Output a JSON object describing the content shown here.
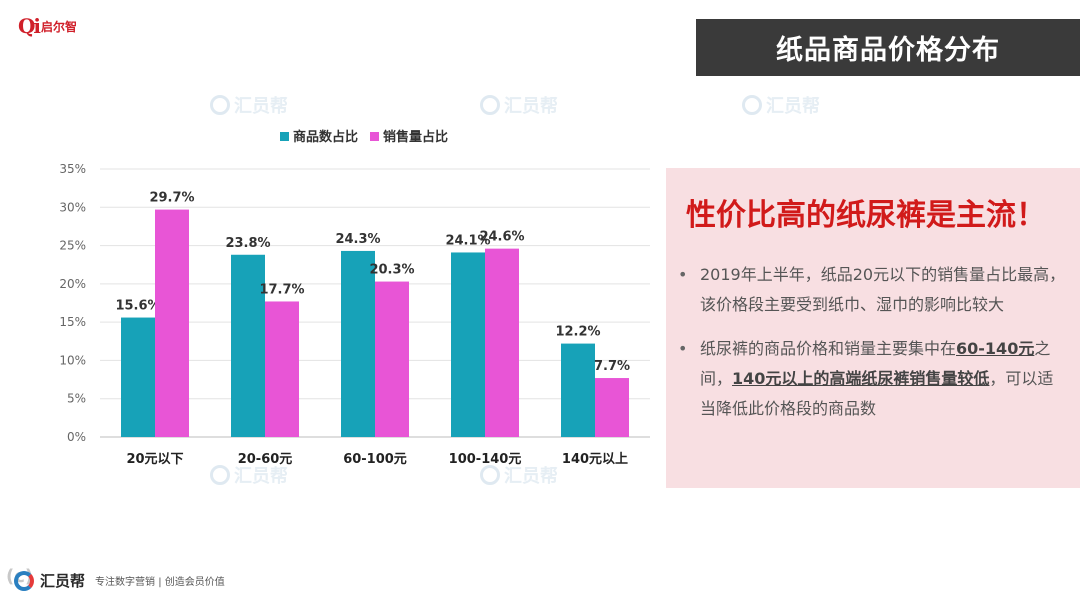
{
  "brand": {
    "logo_mark": "Qi",
    "logo_text": "启尔智"
  },
  "header": {
    "title": "纸品商品价格分布"
  },
  "watermark": {
    "text": "汇员帮"
  },
  "chart_data": {
    "type": "bar",
    "categories": [
      "20元以下",
      "20-60元",
      "60-100元",
      "100-140元",
      "140元以上"
    ],
    "series": [
      {
        "name": "商品数占比",
        "values": [
          15.6,
          23.8,
          24.3,
          24.1,
          12.2
        ],
        "labels": [
          "15.6%",
          "23.8%",
          "24.3%",
          "24.1%",
          "12.2%"
        ],
        "color": "#17a2b8"
      },
      {
        "name": "销售量占比",
        "values": [
          29.7,
          17.7,
          20.3,
          24.6,
          7.7
        ],
        "labels": [
          "29.7%",
          "17.7%",
          "20.3%",
          "24.6%",
          "7.7%"
        ],
        "color": "#e855d6"
      }
    ],
    "yticks": [
      "0%",
      "5%",
      "10%",
      "15%",
      "20%",
      "25%",
      "30%",
      "35%"
    ],
    "ylim": [
      0,
      35
    ],
    "grid": true,
    "legend": "top"
  },
  "panel": {
    "heading": "性价比高的纸尿裤是主流！",
    "bullet_marker": "•",
    "bullet1": "2019年上半年，纸品20元以下的销售量占比最高，该价格段主要受到纸巾、湿巾的影响比较大",
    "bullet2_a": "纸尿裤的商品价格和销量主要集中在",
    "bullet2_b": "60-140元",
    "bullet2_c": "之间，",
    "bullet2_d": "140元以上的高端纸尿裤销售量较低",
    "bullet2_e": "，可以适当降低此价格段的商品数"
  },
  "footer": {
    "brand": "汇员帮",
    "slogan": "专注数字营销 | 创造会员价值",
    "corner": "(c)"
  },
  "colors": {
    "title_bg": "#3a3a3a",
    "panel_bg": "#f8dfe2",
    "heading_red": "#d11a1a"
  }
}
